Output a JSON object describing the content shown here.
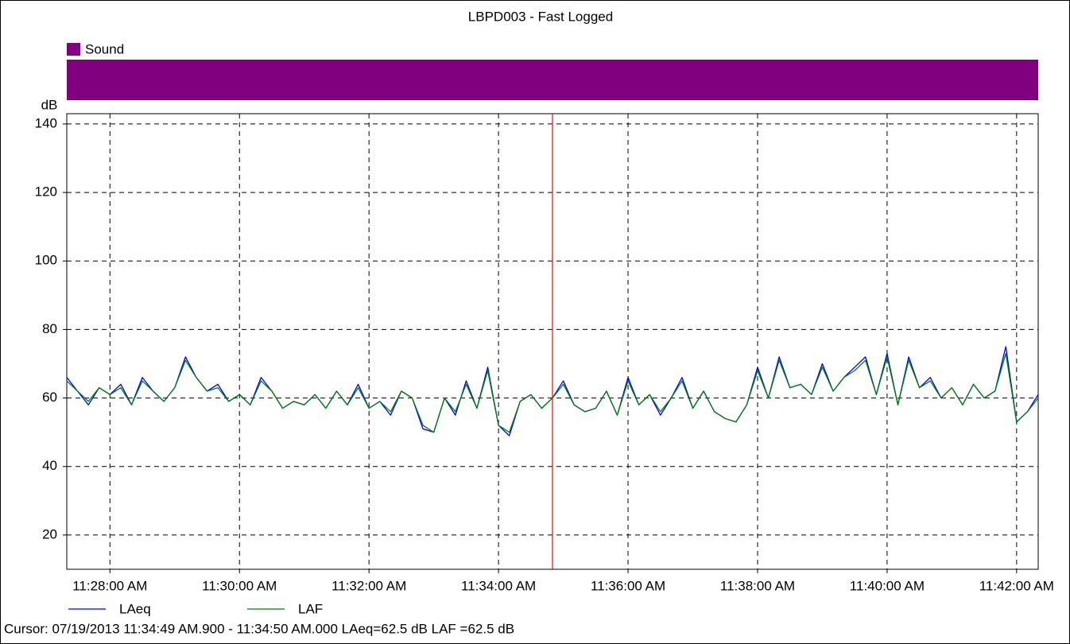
{
  "chart_data": {
    "type": "line",
    "title": "LBPD003 - Fast Logged",
    "y_label": "dB",
    "event_bar": {
      "name": "Sound",
      "color": "#800080"
    },
    "x": [
      "11:27:20 AM",
      "11:27:30 AM",
      "11:27:40 AM",
      "11:27:50 AM",
      "11:28:00 AM",
      "11:28:10 AM",
      "11:28:20 AM",
      "11:28:30 AM",
      "11:28:40 AM",
      "11:28:50 AM",
      "11:29:00 AM",
      "11:29:10 AM",
      "11:29:20 AM",
      "11:29:30 AM",
      "11:29:40 AM",
      "11:29:50 AM",
      "11:30:00 AM",
      "11:30:10 AM",
      "11:30:20 AM",
      "11:30:30 AM",
      "11:30:40 AM",
      "11:30:50 AM",
      "11:31:00 AM",
      "11:31:10 AM",
      "11:31:20 AM",
      "11:31:30 AM",
      "11:31:40 AM",
      "11:31:50 AM",
      "11:32:00 AM",
      "11:32:10 AM",
      "11:32:20 AM",
      "11:32:30 AM",
      "11:32:40 AM",
      "11:32:50 AM",
      "11:33:00 AM",
      "11:33:10 AM",
      "11:33:20 AM",
      "11:33:30 AM",
      "11:33:40 AM",
      "11:33:50 AM",
      "11:34:00 AM",
      "11:34:10 AM",
      "11:34:20 AM",
      "11:34:30 AM",
      "11:34:40 AM",
      "11:34:50 AM",
      "11:35:00 AM",
      "11:35:10 AM",
      "11:35:20 AM",
      "11:35:30 AM",
      "11:35:40 AM",
      "11:35:50 AM",
      "11:36:00 AM",
      "11:36:10 AM",
      "11:36:20 AM",
      "11:36:30 AM",
      "11:36:40 AM",
      "11:36:50 AM",
      "11:37:00 AM",
      "11:37:10 AM",
      "11:37:20 AM",
      "11:37:30 AM",
      "11:37:40 AM",
      "11:37:50 AM",
      "11:38:00 AM",
      "11:38:10 AM",
      "11:38:20 AM",
      "11:38:30 AM",
      "11:38:40 AM",
      "11:38:50 AM",
      "11:39:00 AM",
      "11:39:10 AM",
      "11:39:20 AM",
      "11:39:30 AM",
      "11:39:40 AM",
      "11:39:50 AM",
      "11:40:00 AM",
      "11:40:10 AM",
      "11:40:20 AM",
      "11:40:30 AM",
      "11:40:40 AM",
      "11:40:50 AM",
      "11:41:00 AM",
      "11:41:10 AM",
      "11:41:20 AM",
      "11:41:30 AM",
      "11:41:40 AM",
      "11:41:50 AM",
      "11:42:00 AM",
      "11:42:10 AM",
      "11:42:20 AM"
    ],
    "series": [
      {
        "name": "LAeq",
        "color": "#0000ff",
        "values": [
          66,
          62,
          58,
          63,
          61,
          64,
          58,
          66,
          62,
          59,
          63,
          72,
          66,
          62,
          64,
          59,
          61,
          58,
          66,
          62,
          57,
          59,
          58,
          61,
          57,
          62,
          58,
          64,
          57,
          59,
          55,
          62,
          60,
          51,
          50,
          60,
          55,
          65,
          57,
          69,
          52,
          49,
          59,
          61,
          57,
          60,
          65,
          58,
          56,
          57,
          62,
          55,
          66,
          58,
          61,
          55,
          60,
          66,
          57,
          62,
          56,
          54,
          53,
          58,
          69,
          60,
          72,
          63,
          64,
          61,
          70,
          62,
          66,
          69,
          72,
          61,
          73,
          58,
          72,
          63,
          66,
          60,
          63,
          58,
          64,
          60,
          62,
          75,
          53,
          56,
          61
        ]
      },
      {
        "name": "LAF",
        "color": "#008000",
        "values": [
          65,
          62,
          59,
          63,
          61,
          63,
          58,
          65,
          62,
          59,
          63,
          71,
          66,
          62,
          63,
          59,
          61,
          58,
          65,
          62,
          57,
          59,
          58,
          61,
          57,
          62,
          58,
          63,
          57,
          59,
          56,
          62,
          60,
          52,
          50,
          60,
          56,
          64,
          57,
          68,
          52,
          50,
          59,
          61,
          57,
          60,
          64,
          58,
          56,
          57,
          62,
          55,
          65,
          58,
          61,
          56,
          60,
          65,
          57,
          62,
          56,
          54,
          53,
          58,
          68,
          60,
          71,
          63,
          64,
          61,
          69,
          62,
          66,
          68,
          71,
          61,
          72,
          58,
          71,
          63,
          65,
          60,
          63,
          58,
          64,
          60,
          62,
          73,
          53,
          56,
          60
        ]
      }
    ],
    "xlim": [
      "11:27:20 AM",
      "11:42:20 AM"
    ],
    "xticks": [
      "11:28:00 AM",
      "11:30:00 AM",
      "11:32:00 AM",
      "11:34:00 AM",
      "11:36:00 AM",
      "11:38:00 AM",
      "11:40:00 AM",
      "11:42:00 AM"
    ],
    "ylim": [
      10,
      143
    ],
    "yticks": [
      20,
      40,
      60,
      80,
      100,
      120,
      140
    ],
    "grid": true,
    "cursor": {
      "time": "11:34:50 AM",
      "color": "#ff0000",
      "text": "Cursor: 07/19/2013 11:34:49 AM.900 - 11:34:50 AM.000  LAeq=62.5 dB  LAF =62.5 dB"
    }
  }
}
